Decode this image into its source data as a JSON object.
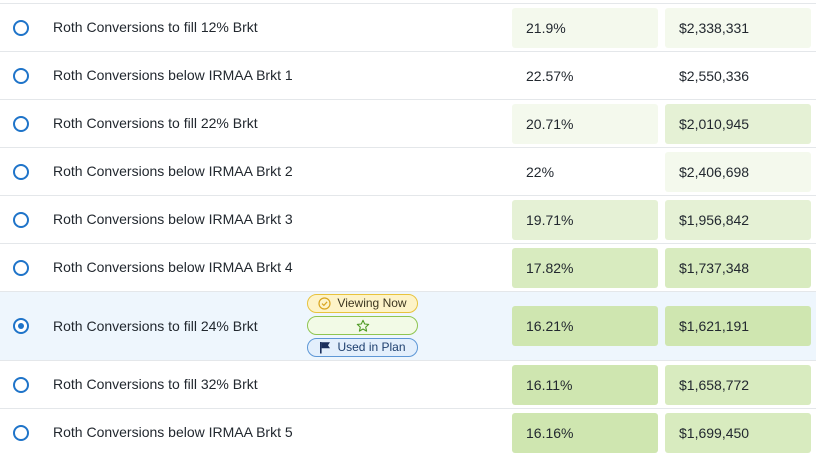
{
  "colors": {
    "selected_row_bg": "#eef6fd",
    "radio_blue": "#1f74c9",
    "cell_green_lightest": "#f4f9ed",
    "cell_green_light": "#e5f1d5",
    "cell_green_mid": "#d8ebbf",
    "cell_green_strong": "#cfe6b0"
  },
  "badges": {
    "viewing_now_label": "Viewing Now",
    "viewing_now_icon": "check-circle-icon",
    "favorite_icon": "star-outline-icon",
    "used_in_plan_label": "Used in Plan",
    "used_in_plan_icon": "flag-icon"
  },
  "rows": [
    {
      "name": "Roth Conversions to fill 12% Brkt",
      "pct": "21.9%",
      "value": "$2,338,331",
      "selected": false,
      "pct_shade": "lightest",
      "val_shade": "lightest"
    },
    {
      "name": "Roth Conversions below IRMAA Brkt 1",
      "pct": "22.57%",
      "value": "$2,550,336",
      "selected": false,
      "pct_shade": "none",
      "val_shade": "none"
    },
    {
      "name": "Roth Conversions to fill 22% Brkt",
      "pct": "20.71%",
      "value": "$2,010,945",
      "selected": false,
      "pct_shade": "lightest",
      "val_shade": "light"
    },
    {
      "name": "Roth Conversions below IRMAA Brkt 2",
      "pct": "22%",
      "value": "$2,406,698",
      "selected": false,
      "pct_shade": "none",
      "val_shade": "lightest"
    },
    {
      "name": "Roth Conversions below IRMAA Brkt 3",
      "pct": "19.71%",
      "value": "$1,956,842",
      "selected": false,
      "pct_shade": "light",
      "val_shade": "light"
    },
    {
      "name": "Roth Conversions below IRMAA Brkt 4",
      "pct": "17.82%",
      "value": "$1,737,348",
      "selected": false,
      "pct_shade": "mid",
      "val_shade": "mid"
    },
    {
      "name": "Roth Conversions to fill 24% Brkt",
      "pct": "16.21%",
      "value": "$1,621,191",
      "selected": true,
      "pct_shade": "strong",
      "val_shade": "strong"
    },
    {
      "name": "Roth Conversions to fill 32% Brkt",
      "pct": "16.11%",
      "value": "$1,658,772",
      "selected": false,
      "pct_shade": "strong",
      "val_shade": "mid"
    },
    {
      "name": "Roth Conversions below IRMAA Brkt 5",
      "pct": "16.16%",
      "value": "$1,699,450",
      "selected": false,
      "pct_shade": "strong",
      "val_shade": "mid"
    }
  ]
}
